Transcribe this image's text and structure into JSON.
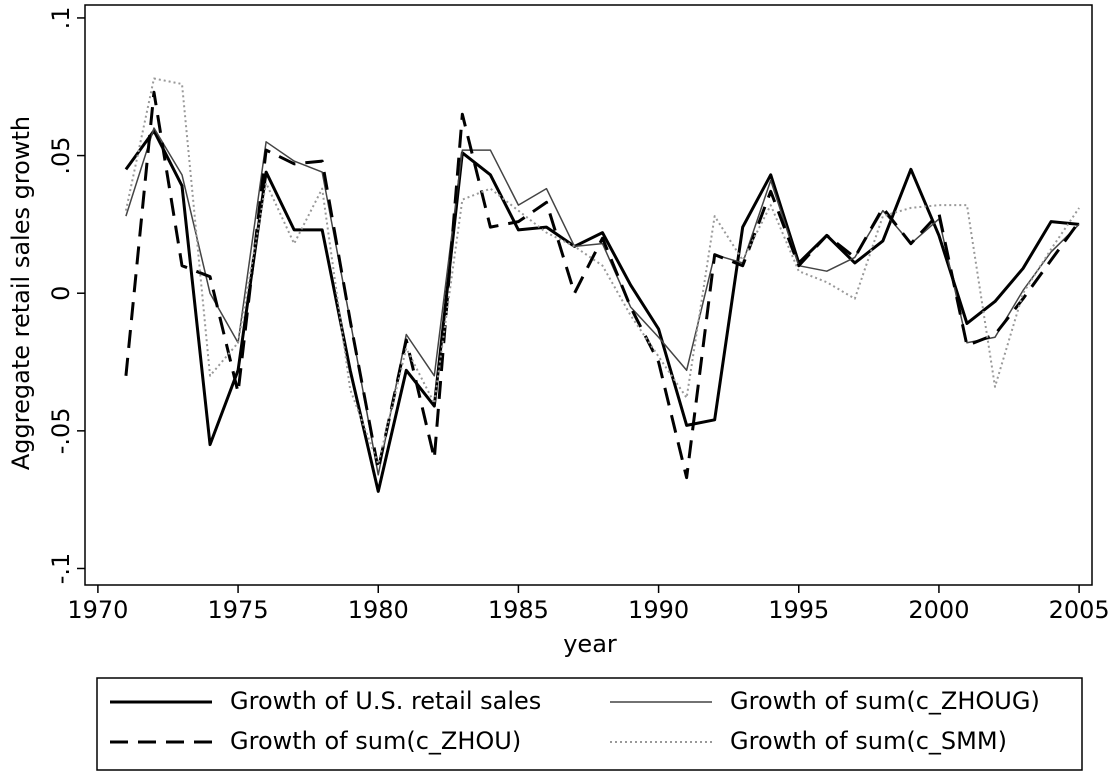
{
  "chart_data": {
    "type": "line",
    "x_label": "year",
    "y_label": "Aggregate retail sales growth",
    "x": [
      1971,
      1972,
      1973,
      1974,
      1975,
      1976,
      1977,
      1978,
      1979,
      1980,
      1981,
      1982,
      1983,
      1984,
      1985,
      1986,
      1987,
      1988,
      1989,
      1990,
      1991,
      1992,
      1993,
      1994,
      1995,
      1996,
      1997,
      1998,
      1999,
      2000,
      2001,
      2002,
      2003,
      2004,
      2005
    ],
    "xlim": [
      1969.54,
      2005.46
    ],
    "xticks": [
      1970,
      1975,
      1980,
      1985,
      1990,
      1995,
      2000,
      2005
    ],
    "ylim": [
      -0.106,
      0.1047
    ],
    "yticks": [
      {
        "value": -0.1,
        "label": "-.1"
      },
      {
        "value": -0.05,
        "label": "-.05"
      },
      {
        "value": 0,
        "label": "0"
      },
      {
        "value": 0.05,
        "label": ".05"
      },
      {
        "value": 0.1,
        "label": ".1"
      }
    ],
    "series": [
      {
        "name": "Growth of U.S. retail sales",
        "color": "#000000",
        "line_style": "solid",
        "line_width": 3,
        "values": [
          0.045,
          0.059,
          0.039,
          -0.055,
          -0.028,
          0.044,
          0.023,
          0.023,
          -0.028,
          -0.072,
          -0.028,
          -0.041,
          0.051,
          0.043,
          0.023,
          0.024,
          0.017,
          0.022,
          0.003,
          -0.013,
          -0.048,
          -0.046,
          0.024,
          0.043,
          0.011,
          0.021,
          0.011,
          0.019,
          0.045,
          0.021,
          -0.011,
          -0.003,
          0.009,
          0.026,
          0.025
        ]
      },
      {
        "name": "Growth of sum(c_ZHOUG)",
        "color": "#444444",
        "line_style": "solid",
        "line_width": 1.5,
        "values": [
          0.028,
          0.06,
          0.043,
          0.0,
          -0.018,
          0.055,
          0.048,
          0.044,
          -0.01,
          -0.066,
          -0.015,
          -0.03,
          0.052,
          0.052,
          0.032,
          0.038,
          0.017,
          0.018,
          -0.005,
          -0.016,
          -0.028,
          0.014,
          0.011,
          0.041,
          0.01,
          0.008,
          0.013,
          0.03,
          0.018,
          0.027,
          -0.018,
          -0.016,
          0.001,
          0.015,
          0.025
        ]
      },
      {
        "name": "Growth of sum(c_ZHOU)",
        "color": "#000000",
        "line_style": "dashed",
        "line_width": 3,
        "values": [
          -0.03,
          0.073,
          0.01,
          0.006,
          -0.036,
          0.052,
          0.047,
          0.048,
          -0.01,
          -0.064,
          -0.017,
          -0.06,
          0.065,
          0.024,
          0.026,
          0.033,
          0.0,
          0.02,
          -0.005,
          -0.025,
          -0.067,
          0.014,
          0.01,
          0.037,
          0.01,
          0.021,
          0.013,
          0.031,
          0.018,
          0.029,
          -0.019,
          -0.015,
          -0.002,
          0.012,
          0.026
        ]
      },
      {
        "name": "Growth of sum(c_SMM)",
        "color": "#999999",
        "line_style": "dotted",
        "line_width": 2,
        "values": [
          0.03,
          0.078,
          0.076,
          -0.03,
          -0.018,
          0.04,
          0.018,
          0.038,
          -0.035,
          -0.062,
          -0.02,
          -0.04,
          0.034,
          0.038,
          0.03,
          0.022,
          0.017,
          0.01,
          -0.008,
          -0.023,
          -0.038,
          0.028,
          0.012,
          0.032,
          0.008,
          0.004,
          -0.002,
          0.028,
          0.031,
          0.032,
          0.032,
          -0.034,
          0.0,
          0.016,
          0.031
        ]
      }
    ],
    "legend": "bottom",
    "grid": false
  }
}
